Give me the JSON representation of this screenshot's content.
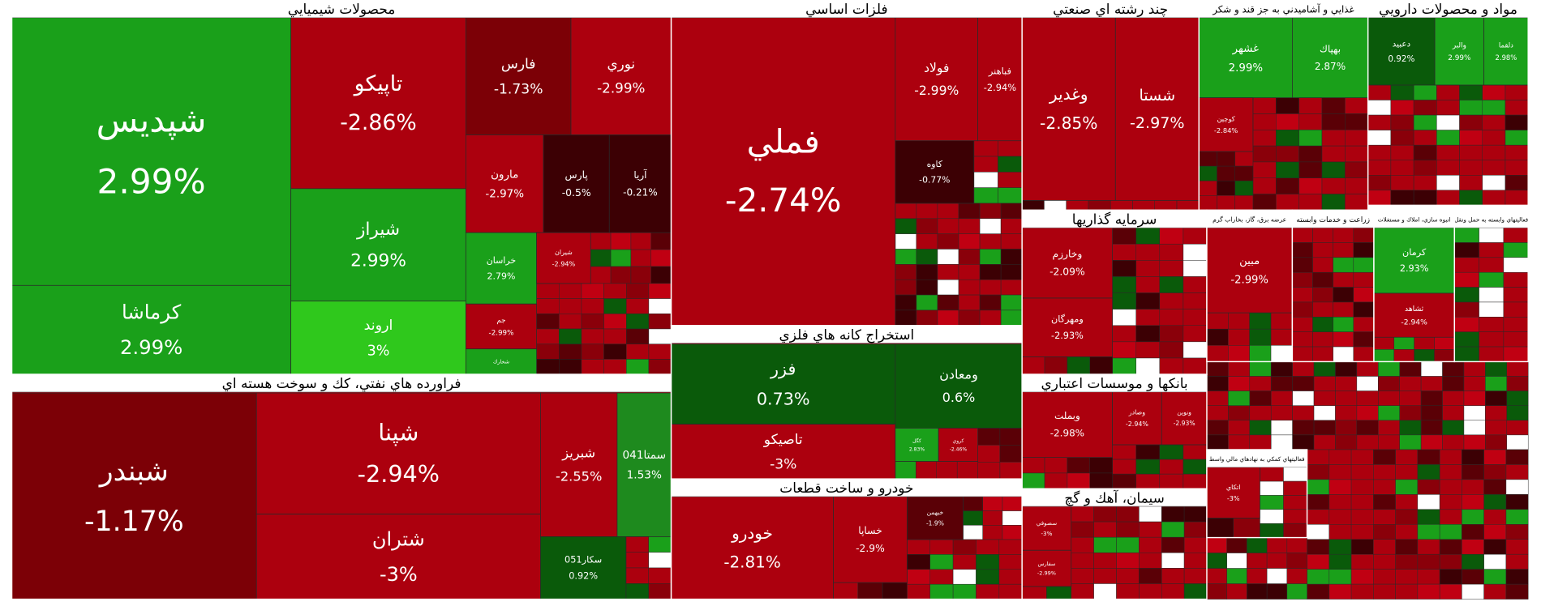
{
  "sectors": [
    {
      "title": "محصولات شيميايي",
      "tiles": [
        {
          "name": "شپديس",
          "change": "2.99%",
          "color": "#1aa01a"
        },
        {
          "name": "كرماشا",
          "change": "2.99%",
          "color": "#1aa01a"
        },
        {
          "name": "تاپيكو",
          "change": "-2.86%",
          "color": "#ac000e"
        },
        {
          "name": "شيراز",
          "change": "2.99%",
          "color": "#1aa01a"
        },
        {
          "name": "اروند",
          "change": "3%",
          "color": "#2fc81c"
        },
        {
          "name": "فارس",
          "change": "-1.73%",
          "color": "#7c0006"
        },
        {
          "name": "نوري",
          "change": "-2.99%",
          "color": "#ac000e"
        },
        {
          "name": "مارون",
          "change": "-2.97%",
          "color": "#ac000e"
        },
        {
          "name": "پارس",
          "change": "-0.5%",
          "color": "#3c0004"
        },
        {
          "name": "آريا",
          "change": "-0.21%",
          "color": "#3c0004"
        },
        {
          "name": "خراسان",
          "change": "2.79%",
          "color": "#1aa01a"
        },
        {
          "name": "جم",
          "change": "-2.99%",
          "color": "#ac000e"
        },
        {
          "name": "شخارك",
          "color": "#1aa01a"
        },
        {
          "name": "شيران",
          "change": "-2.94%",
          "color": "#ac000e"
        }
      ]
    },
    {
      "title": "فراورده هاي نفتي، كك و سوخت هسته اي",
      "tiles": [
        {
          "name": "شبندر",
          "change": "-1.17%",
          "color": "#7c0006"
        },
        {
          "name": "شپنا",
          "change": "-2.94%",
          "color": "#ac000e"
        },
        {
          "name": "شتران",
          "change": "-3%",
          "color": "#ac000e"
        },
        {
          "name": "شبريز",
          "change": "-2.55%",
          "color": "#ac000e"
        },
        {
          "name": "سمتا041",
          "change": "1.53%",
          "color": "#1e8a1e"
        },
        {
          "name": "سكار051",
          "change": "0.92%",
          "color": "#0a5a0a"
        }
      ]
    },
    {
      "title": "فلزات اساسي",
      "tiles": [
        {
          "name": "فملي",
          "change": "-2.74%",
          "color": "#ac000e"
        },
        {
          "name": "فولاد",
          "change": "-2.99%",
          "color": "#ac000e"
        },
        {
          "name": "فباهنر",
          "change": "-2.94%",
          "color": "#ac000e"
        },
        {
          "name": "كاوه",
          "change": "-0.77%",
          "color": "#3c0004"
        }
      ]
    },
    {
      "title": "استخراج كانه هاي فلزي",
      "tiles": [
        {
          "name": "فزر",
          "change": "0.73%",
          "color": "#0a5a0a"
        },
        {
          "name": "ومعادن",
          "change": "0.6%",
          "color": "#0a5a0a"
        },
        {
          "name": "تاصيكو",
          "change": "-3%",
          "color": "#ac000e"
        },
        {
          "name": "كگل",
          "change": "2.83%",
          "color": "#1aa01a"
        },
        {
          "name": "كروي",
          "change": "-2.46%",
          "color": "#ac000e"
        }
      ]
    },
    {
      "title": "خودرو و ساخت قطعات",
      "tiles": [
        {
          "name": "خودرو",
          "change": "-2.81%",
          "color": "#ac000e"
        },
        {
          "name": "خساپا",
          "change": "-2.9%",
          "color": "#ac000e"
        },
        {
          "name": "خبهمن",
          "change": "-1.9%",
          "color": "#5a0006"
        }
      ]
    },
    {
      "title": "چند رشته اي صنعتي",
      "tiles": [
        {
          "name": "وغدير",
          "change": "-2.85%",
          "color": "#ac000e"
        },
        {
          "name": "شستا",
          "change": "-2.97%",
          "color": "#ac000e"
        }
      ]
    },
    {
      "title": "غذايي و آشاميدني به جز قند و شكر",
      "tiles": [
        {
          "name": "غشهر",
          "change": "2.99%",
          "color": "#1aa01a"
        },
        {
          "name": "بهپاك",
          "change": "2.87%",
          "color": "#1aa01a"
        },
        {
          "name": "كوچين",
          "change": "-2.84%",
          "color": "#ac000e"
        }
      ]
    },
    {
      "title": "مواد و محصولات دارويي",
      "tiles": [
        {
          "name": "دعبيد",
          "change": "0.92%",
          "color": "#0a5a0a"
        },
        {
          "name": "والبر",
          "change": "2.99%",
          "color": "#1aa01a"
        },
        {
          "name": "دلقما",
          "change": "2.98%",
          "color": "#1aa01a"
        }
      ]
    },
    {
      "title": "سرمايه گذاريها",
      "tiles": [
        {
          "name": "وخارزم",
          "change": "-2.09%",
          "color": "#ac000e"
        },
        {
          "name": "ومهرگان",
          "change": "-2.93%",
          "color": "#ac000e"
        }
      ]
    },
    {
      "title": "عرضه برق، گاز، بخاراب گرم",
      "tiles": [
        {
          "name": "مبين",
          "change": "-2.99%",
          "color": "#ac000e"
        }
      ]
    },
    {
      "title": "زراعت و خدمات وابسته",
      "tiles": []
    },
    {
      "title": "انبوه سازي، املاك و مستغلات",
      "tiles": [
        {
          "name": "كرمان",
          "change": "2.93%",
          "color": "#1aa01a"
        },
        {
          "name": "ثشاهد",
          "change": "-2.94%",
          "color": "#ac000e"
        }
      ]
    },
    {
      "title": "فعاليتهاي وابسته به حمل ونقل",
      "tiles": []
    },
    {
      "title": "بانكها و موسسات اعتباري",
      "tiles": [
        {
          "name": "وبملت",
          "change": "-2.98%",
          "color": "#ac000e"
        },
        {
          "name": "وصادر",
          "change": "-2.94%",
          "color": "#ac000e"
        },
        {
          "name": "ونوين",
          "change": "-2.93%",
          "color": "#ac000e"
        }
      ]
    },
    {
      "title": "سيمان، آهك و گچ",
      "tiles": [
        {
          "name": "سصوفي",
          "change": "-3%",
          "color": "#ac000e"
        },
        {
          "name": "سفارس",
          "change": "-2.99%",
          "color": "#ac000e"
        }
      ]
    },
    {
      "title": "فعاليتهاي كمكي به نهادهاي مالي واسط",
      "tiles": [
        {
          "name": "اتكاي",
          "change": "-3%",
          "color": "#ac000e"
        }
      ]
    }
  ]
}
